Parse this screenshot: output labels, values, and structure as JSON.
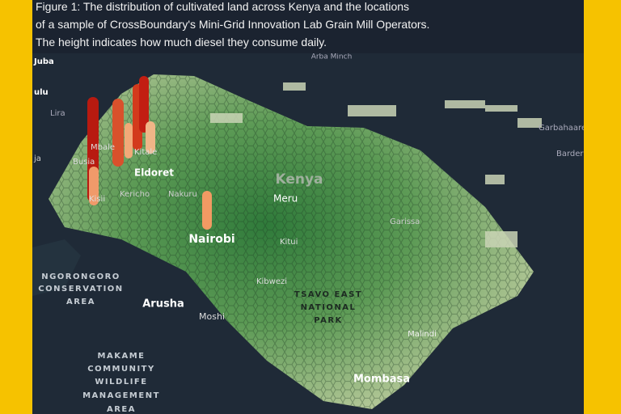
{
  "caption": {
    "lines": [
      "Figure 1: The distribution of cultivated land across Kenya and the locations",
      "of a sample of CrossBoundary's Mini-Grid Innovation Lab Grain Mill Operators.",
      "The height indicates how much diesel they consume daily."
    ]
  },
  "map": {
    "labels": [
      {
        "text": "Juba"
      },
      {
        "text": "ulu"
      },
      {
        "text": "Lira"
      },
      {
        "text": "Mbale"
      },
      {
        "text": "Busia"
      },
      {
        "text": "ja"
      },
      {
        "text": "Kitale"
      },
      {
        "text": "Eldoret"
      },
      {
        "text": "Kisii"
      },
      {
        "text": "Kericho"
      },
      {
        "text": "Nakuru"
      },
      {
        "text": "Kenya"
      },
      {
        "text": "Meru"
      },
      {
        "text": "Nairobi"
      },
      {
        "text": "Kitui"
      },
      {
        "text": "Garissa"
      },
      {
        "text": "Garbahaarey"
      },
      {
        "text": "Bardera"
      },
      {
        "text": "Arba Minch"
      },
      {
        "text": "NGORONGORO"
      },
      {
        "text": "CONSERVATION"
      },
      {
        "text": "AREA"
      },
      {
        "text": "Arusha"
      },
      {
        "text": "Moshi"
      },
      {
        "text": "Kibwezi"
      },
      {
        "text": "TSAVO EAST"
      },
      {
        "text": "NATIONAL"
      },
      {
        "text": "PARK"
      },
      {
        "text": "Malindi"
      },
      {
        "text": "Mombasa"
      },
      {
        "text": "MAKAME"
      },
      {
        "text": "COMMUNITY"
      },
      {
        "text": "WILDLIFE"
      },
      {
        "text": "MANAGEMENT"
      },
      {
        "text": "AREA"
      }
    ]
  }
}
